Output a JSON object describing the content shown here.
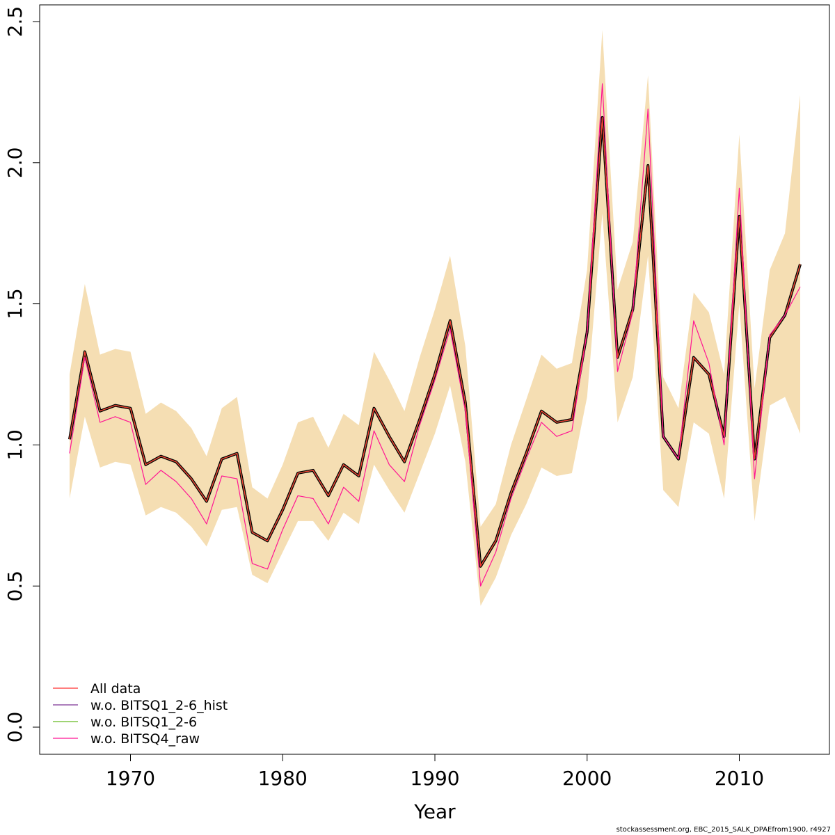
{
  "chart_data": {
    "type": "line",
    "xlabel": "Year",
    "ylabel": "",
    "xlim": [
      1966,
      2014
    ],
    "ylim": [
      0,
      2.5
    ],
    "x_ticks": [
      "1970",
      "1980",
      "1990",
      "2000",
      "2010"
    ],
    "y_ticks": [
      "0.0",
      "0.5",
      "1.0",
      "1.5",
      "2.0",
      "2.5"
    ],
    "grid": false,
    "legend_position": "bottom-left",
    "x": [
      1966,
      1967,
      1968,
      1969,
      1970,
      1971,
      1972,
      1973,
      1974,
      1975,
      1976,
      1977,
      1978,
      1979,
      1980,
      1981,
      1982,
      1983,
      1984,
      1985,
      1986,
      1987,
      1988,
      1989,
      1990,
      1991,
      1992,
      1993,
      1994,
      1995,
      1996,
      1997,
      1998,
      1999,
      2000,
      2001,
      2002,
      2003,
      2004,
      2005,
      2006,
      2007,
      2008,
      2009,
      2010,
      2011,
      2012,
      2013,
      2014
    ],
    "band": {
      "color": "#F5DEB3",
      "lower": [
        0.81,
        1.1,
        0.92,
        0.94,
        0.93,
        0.75,
        0.78,
        0.76,
        0.71,
        0.64,
        0.77,
        0.78,
        0.54,
        0.51,
        0.62,
        0.73,
        0.73,
        0.66,
        0.76,
        0.72,
        0.93,
        0.84,
        0.76,
        0.9,
        1.04,
        1.21,
        0.94,
        0.43,
        0.53,
        0.68,
        0.79,
        0.92,
        0.89,
        0.9,
        1.17,
        1.82,
        1.08,
        1.24,
        1.67,
        0.84,
        0.78,
        1.08,
        1.04,
        0.81,
        1.5,
        0.73,
        1.14,
        1.17,
        1.04
      ],
      "upper": [
        1.25,
        1.57,
        1.32,
        1.34,
        1.33,
        1.11,
        1.15,
        1.12,
        1.06,
        0.96,
        1.13,
        1.17,
        0.85,
        0.81,
        0.93,
        1.08,
        1.1,
        0.99,
        1.11,
        1.07,
        1.33,
        1.23,
        1.12,
        1.31,
        1.48,
        1.67,
        1.35,
        0.71,
        0.79,
        1.0,
        1.16,
        1.32,
        1.27,
        1.29,
        1.62,
        2.47,
        1.55,
        1.72,
        2.31,
        1.24,
        1.13,
        1.54,
        1.47,
        1.25,
        2.1,
        1.2,
        1.62,
        1.75,
        2.24
      ]
    },
    "series": [
      {
        "name": "All data",
        "color": "#FF3030",
        "values": [
          1.02,
          1.33,
          1.12,
          1.14,
          1.13,
          0.93,
          0.96,
          0.94,
          0.88,
          0.8,
          0.95,
          0.97,
          0.69,
          0.66,
          0.77,
          0.9,
          0.91,
          0.82,
          0.93,
          0.89,
          1.13,
          1.03,
          0.94,
          1.09,
          1.25,
          1.44,
          1.15,
          0.57,
          0.66,
          0.83,
          0.97,
          1.12,
          1.08,
          1.09,
          1.4,
          2.16,
          1.31,
          1.48,
          1.99,
          1.03,
          0.95,
          1.31,
          1.25,
          1.03,
          1.81,
          0.95,
          1.38,
          1.46,
          1.64
        ]
      },
      {
        "name": "w.o. BITSQ1_2-6_hist",
        "color": "#7B3294",
        "values": [
          1.02,
          1.33,
          1.12,
          1.14,
          1.13,
          0.93,
          0.96,
          0.94,
          0.88,
          0.8,
          0.95,
          0.97,
          0.69,
          0.66,
          0.77,
          0.9,
          0.91,
          0.82,
          0.93,
          0.89,
          1.13,
          1.03,
          0.94,
          1.09,
          1.25,
          1.44,
          1.15,
          0.57,
          0.66,
          0.83,
          0.97,
          1.12,
          1.08,
          1.09,
          1.4,
          2.16,
          1.31,
          1.48,
          1.99,
          1.03,
          0.95,
          1.31,
          1.25,
          1.03,
          1.81,
          0.95,
          1.38,
          1.46,
          1.64
        ]
      },
      {
        "name": "w.o. BITSQ1_2-6",
        "color": "#66BB22",
        "values": [
          1.02,
          1.33,
          1.12,
          1.14,
          1.13,
          0.93,
          0.96,
          0.94,
          0.88,
          0.8,
          0.95,
          0.97,
          0.69,
          0.66,
          0.77,
          0.9,
          0.91,
          0.82,
          0.93,
          0.89,
          1.13,
          1.03,
          0.94,
          1.09,
          1.25,
          1.44,
          1.15,
          0.57,
          0.66,
          0.83,
          0.97,
          1.12,
          1.08,
          1.09,
          1.4,
          2.16,
          1.31,
          1.48,
          1.99,
          1.03,
          0.95,
          1.31,
          1.25,
          1.03,
          1.81,
          0.95,
          1.38,
          1.46,
          1.64
        ]
      },
      {
        "name": "w.o. BITSQ4_raw",
        "color": "#FF1493",
        "values": [
          0.97,
          1.31,
          1.08,
          1.1,
          1.08,
          0.86,
          0.91,
          0.87,
          0.81,
          0.72,
          0.89,
          0.88,
          0.58,
          0.56,
          0.7,
          0.82,
          0.81,
          0.72,
          0.85,
          0.8,
          1.05,
          0.93,
          0.87,
          1.07,
          1.23,
          1.41,
          1.12,
          0.5,
          0.62,
          0.81,
          0.95,
          1.08,
          1.03,
          1.05,
          1.4,
          2.28,
          1.26,
          1.47,
          2.19,
          1.03,
          0.95,
          1.44,
          1.29,
          1.0,
          1.91,
          0.88,
          1.39,
          1.46,
          1.56
        ]
      }
    ]
  },
  "footer": "stockassessment.org, EBC_2015_SALK_DPAEfrom1900, r4927"
}
